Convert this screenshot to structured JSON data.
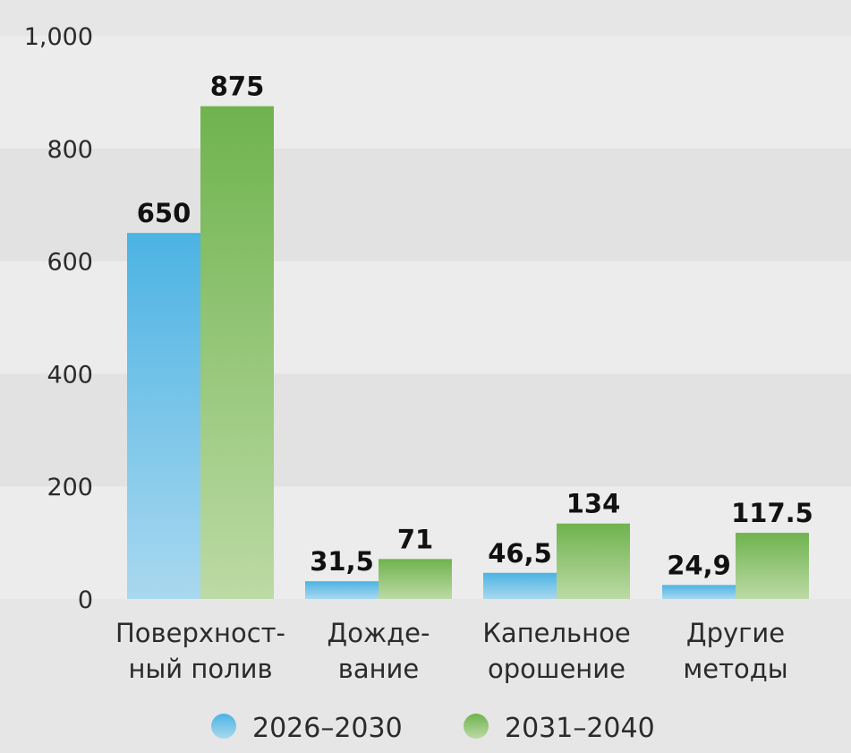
{
  "chart_data": {
    "type": "bar",
    "categories": [
      [
        "Поверхност-",
        "ный полив"
      ],
      [
        "Дожде-",
        "вание"
      ],
      [
        "Капельное",
        "орошение"
      ],
      [
        "Другие",
        "методы"
      ]
    ],
    "series": [
      {
        "name": "2026–2030",
        "values": [
          650,
          31.5,
          46.5,
          24.9
        ],
        "labels": [
          "650",
          "31,5",
          "46,5",
          "24,9"
        ],
        "color": "#4cb3e3",
        "color_light": "#a9d8ef"
      },
      {
        "name": "2031–2040",
        "values": [
          875,
          71,
          134,
          117.5
        ],
        "labels": [
          "875",
          "71",
          "134",
          "117.5"
        ],
        "color": "#6fb34e",
        "color_light": "#bcdaa5"
      }
    ],
    "yticks": [
      "0",
      "200",
      "400",
      "600",
      "800",
      "1,000"
    ],
    "ylim": [
      0,
      1000
    ],
    "grid": "alternating-bands",
    "legend": "bottom-center",
    "title": "",
    "xlabel": "",
    "ylabel": ""
  }
}
